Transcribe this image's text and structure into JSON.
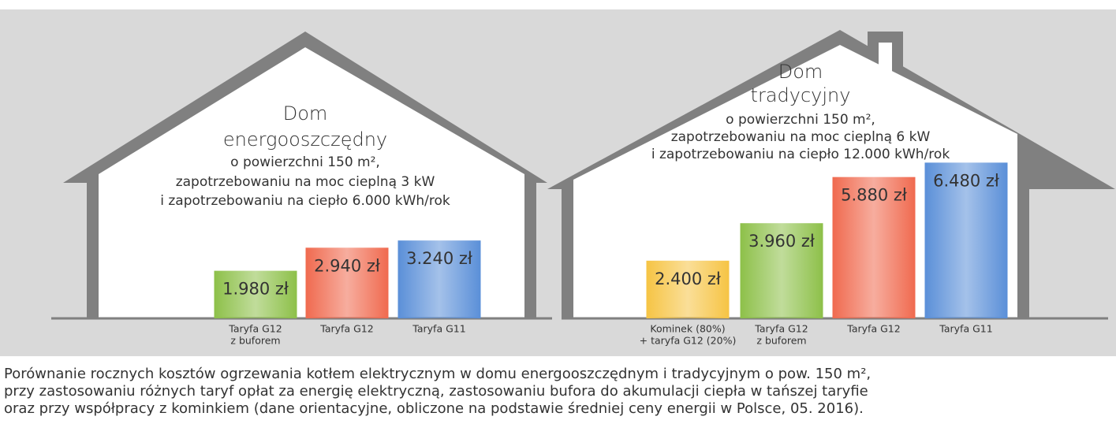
{
  "chart_data": [
    {
      "type": "bar",
      "title": [
        "Dom",
        "energooszczędny"
      ],
      "subtitle": [
        "o powierzchni 150 m²,",
        "zapotrzebowaniu na moc cieplną 3 kW",
        "i zapotrzebowaniu na ciepło 6.000 kWh/rok"
      ],
      "categories": [
        [
          "Taryfa G12",
          "z buforem"
        ],
        [
          "Taryfa G12"
        ],
        [
          "Taryfa G11"
        ]
      ],
      "values": [
        1980,
        2940,
        3240
      ],
      "value_labels": [
        "1.980 zł",
        "2.940 zł",
        "3.240 zł"
      ],
      "colors": [
        "#8dc049",
        "#f06a4f",
        "#5a8fd8"
      ]
    },
    {
      "type": "bar",
      "title": [
        "Dom",
        "tradycyjny"
      ],
      "subtitle": [
        "o powierzchni 150 m²,",
        "zapotrzebowaniu na moc cieplną 6 kW",
        "i zapotrzebowaniu na ciepło 12.000 kWh/rok"
      ],
      "categories": [
        [
          "Kominek (80%)",
          "+ taryfa G12 (20%)"
        ],
        [
          "Taryfa G12",
          "z buforem"
        ],
        [
          "Taryfa G12"
        ],
        [
          "Taryfa G11"
        ]
      ],
      "values": [
        2400,
        3960,
        5880,
        6480
      ],
      "value_labels": [
        "2.400 zł",
        "3.960 zł",
        "5.880 zł",
        "6.480 zł"
      ],
      "colors": [
        "#f6c444",
        "#8dc049",
        "#f06a4f",
        "#5a8fd8"
      ]
    }
  ],
  "caption": [
    "Porównanie rocznych kosztów ogrzewania kotłem elektrycznym w domu energooszczędnym i tradycyjnym o pow. 150 m²,",
    "przy zastosowaniu różnych taryf opłat za energię elektryczną, zastosowaniu bufora do akumulacji ciepła w tańszej taryfie",
    "oraz przy współpracy z kominkiem (dane orientacyjne, obliczone na podstawie średniej ceny energii w Polsce, 05. 2016)."
  ]
}
